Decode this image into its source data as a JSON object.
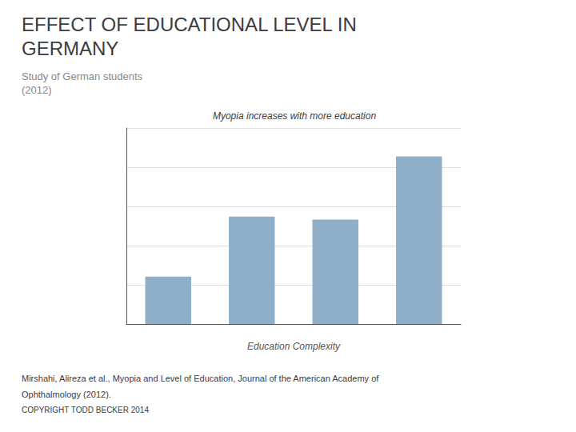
{
  "chart_data": {
    "type": "bar",
    "title": "EFFECT OF EDUCATIONAL LEVEL IN\nGERMANY",
    "subtitle": "Study of German students\n(2012)",
    "xlabel": "Education Complexity",
    "annotations": [
      "Myopia increases with more education",
      "Mirshahi, Alireza et al., Myopia and Level of Education, Journal of the American Academy of",
      "Ophthalmology (2012).",
      "COPYRIGHT TODD BECKER 2014"
    ],
    "categories": [
      null,
      null,
      null,
      null
    ],
    "values": [
      15,
      34,
      33,
      53
    ],
    "color": "#8fafc8",
    "ylim": [
      0,
      62
    ],
    "yticks": [
      0,
      12.4,
      24.8,
      37.2,
      49.6,
      62
    ],
    "grid": true,
    "tick_labels": false
  }
}
